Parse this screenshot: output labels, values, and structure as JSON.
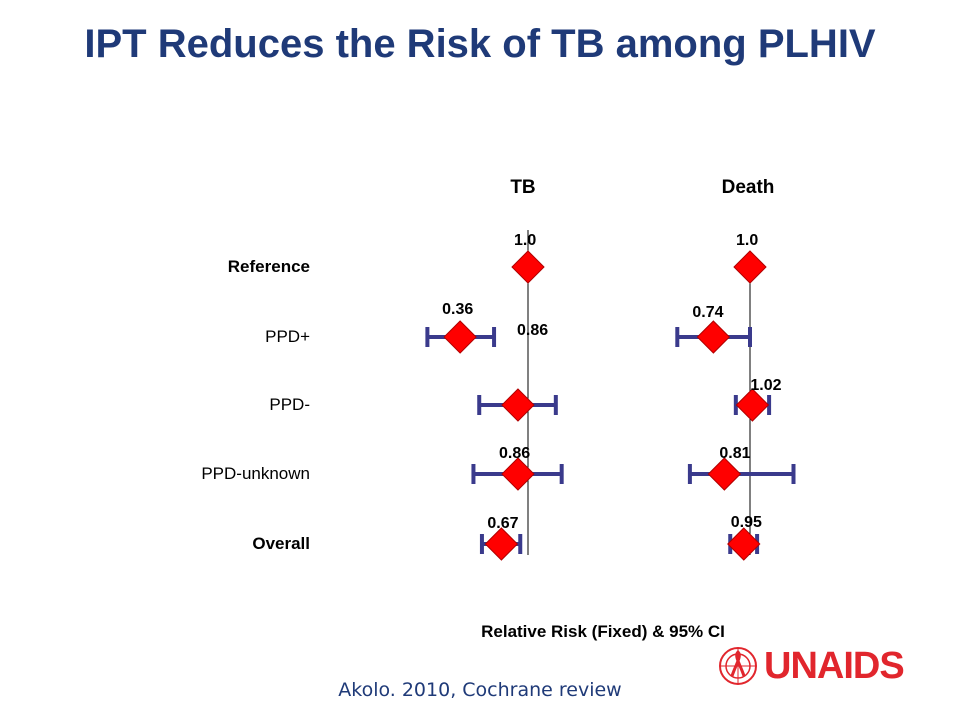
{
  "title": "IPT Reduces the Risk of TB among PLHIV",
  "source": "Akolo. 2010, Cochrane review",
  "logo": {
    "text": "UNAIDS"
  },
  "colors": {
    "title": "#1f3a78",
    "ci_line": "#3a3a8c",
    "marker": "#ff0000",
    "logo": "#e1262d"
  },
  "chart_data": {
    "type": "forest",
    "xlabel": "Relative Risk (Fixed) & 95% CI",
    "rows": [
      "Reference",
      "PPD+",
      "PPD-",
      "PPD-unknown",
      "Overall"
    ],
    "bold_rows": [
      "Reference",
      "Overall"
    ],
    "panels": [
      {
        "name": "TB",
        "estimates": [
          {
            "label": "1.0",
            "value": 1.0,
            "ci": null
          },
          {
            "label": "0.36",
            "value": 0.36,
            "ci": [
              0.22,
              0.6
            ]
          },
          {
            "label": "0.86",
            "value": 0.86,
            "ci": [
              0.48,
              1.52
            ]
          },
          {
            "label": "0.86",
            "value": 0.86,
            "ci": [
              0.44,
              1.66
            ]
          },
          {
            "label": "0.67",
            "value": 0.67,
            "ci": [
              0.5,
              0.89
            ]
          }
        ]
      },
      {
        "name": "Death",
        "estimates": [
          {
            "label": "1.0",
            "value": 1.0,
            "ci": null
          },
          {
            "label": "0.74",
            "value": 0.74,
            "ci": [
              0.55,
              1.0
            ]
          },
          {
            "label": "1.02",
            "value": 1.02,
            "ci": [
              0.89,
              1.17
            ]
          },
          {
            "label": "0.81",
            "value": 0.81,
            "ci": [
              0.61,
              1.43
            ]
          },
          {
            "label": "0.95",
            "value": 0.95,
            "ci": [
              0.85,
              1.06
            ]
          }
        ]
      }
    ]
  }
}
